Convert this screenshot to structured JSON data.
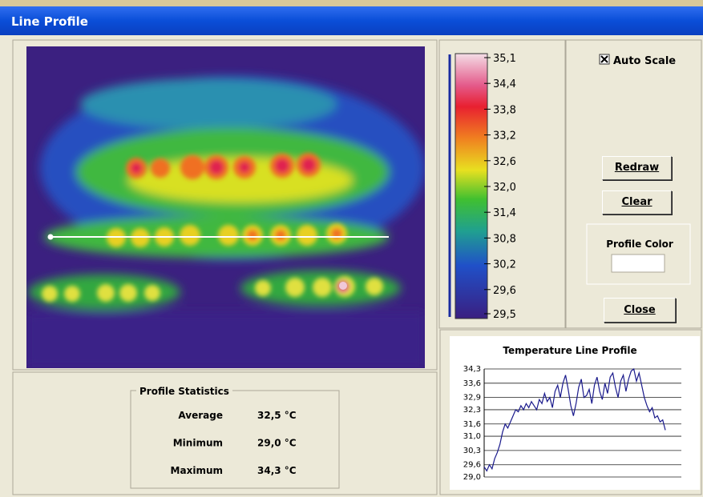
{
  "window": {
    "title": "Line Profile"
  },
  "color_scale": {
    "labels": [
      "35,1",
      "34,4",
      "33,8",
      "33,2",
      "32,6",
      "32,0",
      "31,4",
      "30,8",
      "30,2",
      "29,6",
      "29,5"
    ]
  },
  "controls": {
    "auto_scale": "Auto Scale",
    "redraw": "Redraw",
    "clear": "Clear",
    "profile_color": "Profile Color",
    "close": "Close"
  },
  "statistics": {
    "title": "Profile Statistics",
    "rows": [
      [
        "Average",
        "32,5 °C"
      ],
      [
        "Minimum",
        "29,0 °C"
      ],
      [
        "Maximum",
        "34,3 °C"
      ]
    ]
  },
  "profile_chart": {
    "type": "line",
    "title": "Temperature Line Profile",
    "color": "#1a1a8c",
    "grid": true,
    "ylim": [
      29.0,
      34.3
    ],
    "yticks": [
      {
        "value": 29.0,
        "label": "29,0"
      },
      {
        "value": 29.6,
        "label": "29,6"
      },
      {
        "value": 30.3,
        "label": "30,3"
      },
      {
        "value": 31.0,
        "label": "31,0"
      },
      {
        "value": 31.6,
        "label": "31,6"
      },
      {
        "value": 32.3,
        "label": "32,3"
      },
      {
        "value": 32.9,
        "label": "32,9"
      },
      {
        "value": 33.6,
        "label": "33,6"
      },
      {
        "value": 34.3,
        "label": "34,3"
      }
    ],
    "values": [
      29.5,
      29.3,
      29.6,
      29.4,
      29.9,
      30.2,
      30.6,
      31.2,
      31.6,
      31.4,
      31.7,
      32.0,
      32.3,
      32.2,
      32.5,
      32.3,
      32.6,
      32.4,
      32.7,
      32.5,
      32.3,
      32.8,
      32.6,
      33.1,
      32.7,
      32.9,
      32.4,
      33.2,
      33.5,
      32.9,
      33.6,
      34.0,
      33.3,
      32.5,
      32.0,
      32.6,
      33.4,
      33.8,
      32.9,
      33.0,
      33.3,
      32.6,
      33.5,
      33.9,
      33.2,
      32.8,
      33.6,
      33.1,
      33.9,
      34.1,
      33.4,
      32.9,
      33.7,
      34.0,
      33.2,
      33.8,
      34.2,
      34.3,
      33.7,
      34.1,
      33.5,
      32.9,
      32.5,
      32.2,
      32.4,
      31.9,
      32.0,
      31.7,
      31.8,
      31.3
    ]
  }
}
